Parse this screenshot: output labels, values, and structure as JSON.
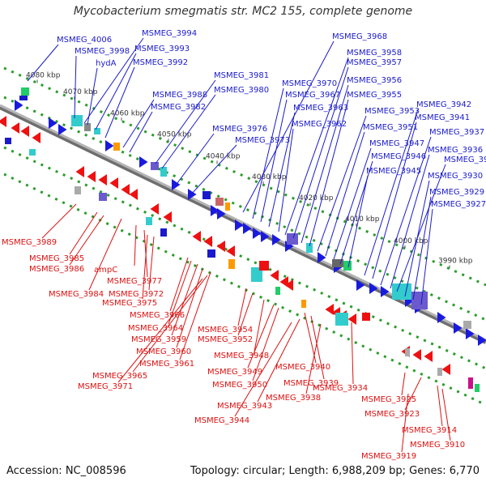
{
  "title": "Mycobacterium smegmatis str. MC2 155, complete genome",
  "footer": {
    "accession": "Accession: NC_008596",
    "summary": "Topology: circular; Length: 6,988,209 bp; Genes: 6,770"
  },
  "colors": {
    "forward_label": "#1a1acc",
    "reverse_label": "#dd1111",
    "backbone": "#8a8a8a",
    "dotted_ring": "#2a9d2a"
  },
  "kbp_ticks": [
    "4080 kbp",
    "4070 kbp",
    "4060 kbp",
    "4050 kbp",
    "4040 kbp",
    "4030 kbp",
    "4020 kbp",
    "4010 kbp",
    "4000 kbp",
    "3990 kbp"
  ],
  "forward_genes": [
    "MSMEG_4006",
    "MSMEG_3998",
    "hydA",
    "MSMEG_3994",
    "MSMEG_3993",
    "MSMEG_3992",
    "MSMEG_3988",
    "MSMEG_3982",
    "MSMEG_3981",
    "MSMEG_3980",
    "MSMEG_3976",
    "MSMEG_3973",
    "MSMEG_3968",
    "MSMEG_3970",
    "MSMEG_3967",
    "MSMEG_3963",
    "MSMEG_3962",
    "MSMEG_3958",
    "MSMEG_3957",
    "MSMEG_3956",
    "MSMEG_3955",
    "MSMEG_3953",
    "MSMEG_3951",
    "MSMEG_3947",
    "MSMEG_3946",
    "MSMEG_3945",
    "MSMEG_3942",
    "MSMEG_3941",
    "MSMEG_3937",
    "MSMEG_3936",
    "MSMEG_3931",
    "MSMEG_3930",
    "MSMEG_3929",
    "MSMEG_3927"
  ],
  "reverse_genes": [
    "MSMEG_3989",
    "MSMEG_3985",
    "MSMEG_3986",
    "MSMEG_3984",
    "ampC",
    "MSMEG_3977",
    "MSMEG_3975",
    "MSMEG_3972",
    "MSMEG_3966",
    "MSMEG_3964",
    "MSMEG_3959",
    "MSMEG_3960",
    "MSMEG_3961",
    "MSMEG_3965",
    "MSMEG_3971",
    "MSMEG_3954",
    "MSMEG_3952",
    "MSMEG_3948",
    "MSMEG_3949",
    "MSMEG_3950",
    "MSMEG_3940",
    "MSMEG_3939",
    "MSMEG_3943",
    "MSMEG_3944",
    "MSMEG_3938",
    "MSMEG_3934",
    "MSMEG_3925",
    "MSMEG_3923",
    "MSMEG_3914",
    "MSMEG_3910",
    "MSMEG_3919"
  ]
}
